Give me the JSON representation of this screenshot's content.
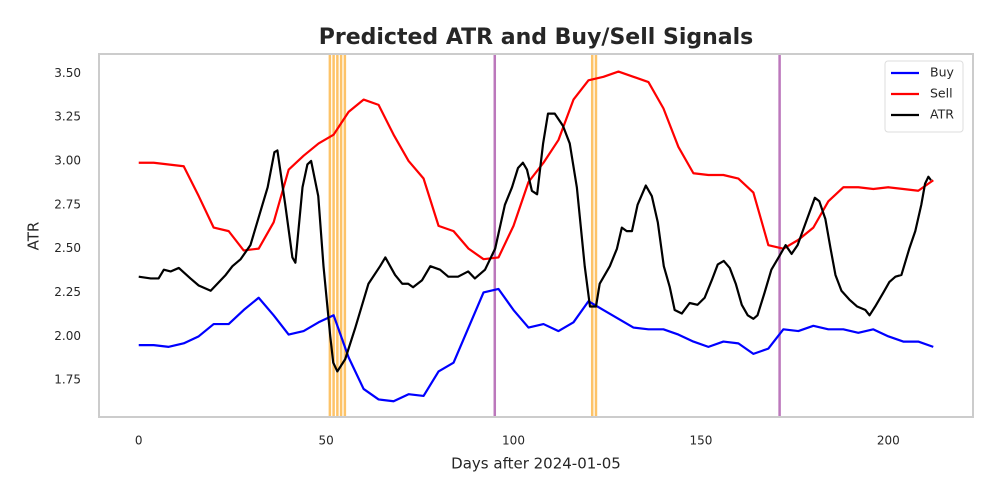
{
  "chart_data": {
    "type": "line",
    "title": "Predicted ATR and Buy/Sell Signals",
    "xlabel": "Days after 2024-01-05",
    "ylabel": "ATR",
    "x": [
      0,
      4,
      8,
      12,
      16,
      20,
      24,
      28,
      32,
      36,
      40,
      44,
      48,
      52,
      56,
      60,
      64,
      68,
      72,
      76,
      80,
      84,
      88,
      92,
      96,
      100,
      104,
      108,
      112,
      116,
      120,
      124,
      128,
      132,
      136,
      140,
      144,
      148,
      152,
      156,
      160,
      164,
      168,
      172,
      176,
      180,
      184,
      188,
      192,
      196,
      200,
      204,
      208,
      212
    ],
    "series": [
      {
        "name": "Buy",
        "color": "#0000ff",
        "values": [
          1.95,
          1.95,
          1.94,
          1.96,
          2.0,
          2.07,
          2.07,
          2.15,
          2.22,
          2.12,
          2.01,
          2.03,
          2.08,
          2.12,
          1.88,
          1.7,
          1.64,
          1.63,
          1.67,
          1.66,
          1.8,
          1.85,
          2.05,
          2.25,
          2.27,
          2.15,
          2.05,
          2.07,
          2.03,
          2.08,
          2.2,
          2.15,
          2.1,
          2.05,
          2.04,
          2.04,
          2.01,
          1.97,
          1.94,
          1.97,
          1.96,
          1.9,
          1.93,
          2.04,
          2.03,
          2.06,
          2.04,
          2.04,
          2.02,
          2.04,
          2.0,
          1.97,
          1.97,
          1.94
        ]
      },
      {
        "name": "Sell",
        "color": "#ff0000",
        "values": [
          2.99,
          2.99,
          2.98,
          2.97,
          2.8,
          2.62,
          2.6,
          2.49,
          2.5,
          2.65,
          2.95,
          3.03,
          3.1,
          3.15,
          3.28,
          3.35,
          3.32,
          3.15,
          3.0,
          2.9,
          2.63,
          2.6,
          2.5,
          2.44,
          2.45,
          2.63,
          2.88,
          2.99,
          3.12,
          3.35,
          3.46,
          3.48,
          3.51,
          3.48,
          3.45,
          3.3,
          3.08,
          2.93,
          2.92,
          2.92,
          2.9,
          2.82,
          2.52,
          2.5,
          2.55,
          2.62,
          2.77,
          2.85,
          2.85,
          2.84,
          2.85,
          2.84,
          2.83,
          2.89
        ]
      },
      {
        "name": "ATR",
        "color": "#000000",
        "x": [
          0,
          3.2,
          5.3,
          6.7,
          8.5,
          10.7,
          13.8,
          16,
          19.2,
          23.2,
          25,
          27.2,
          29.8,
          33,
          34.4,
          36.2,
          37,
          39.1,
          41,
          41.8,
          43.7,
          45,
          46,
          47.9,
          49.3,
          51.1,
          51.9,
          53,
          55.1,
          57.8,
          61.3,
          64.4,
          65.8,
          68.4,
          70.3,
          71.9,
          73.2,
          75.6,
          77.8,
          80.4,
          82.6,
          85.2,
          87.9,
          89.7,
          92.4,
          95.1,
          97.7,
          99.6,
          101.2,
          102.5,
          103.6,
          104.9,
          106.3,
          107.9,
          109.2,
          111,
          113.2,
          115,
          116.9,
          119,
          120.4,
          122,
          123,
          125.7,
          127.6,
          128.9,
          130.2,
          131.6,
          133.1,
          135.3,
          136.9,
          138.5,
          140.1,
          141.7,
          143,
          144.9,
          147,
          149.1,
          151,
          152.9,
          154.5,
          156.1,
          157.7,
          159.3,
          160.9,
          162.5,
          164,
          165.1,
          167,
          168.8,
          171,
          172.6,
          174.2,
          175.8,
          178,
          180.4,
          181.6,
          183.2,
          184.6,
          185.9,
          187.5,
          189.6,
          191.7,
          193.9,
          195,
          196.5,
          198.7,
          200.3,
          201.9,
          203.5,
          205.6,
          207.2,
          208.8,
          209.8,
          210.7,
          211.4
        ],
        "values": [
          2.34,
          2.33,
          2.33,
          2.38,
          2.37,
          2.39,
          2.33,
          2.29,
          2.26,
          2.35,
          2.4,
          2.44,
          2.52,
          2.75,
          2.85,
          3.05,
          3.06,
          2.75,
          2.45,
          2.42,
          2.85,
          2.98,
          3.0,
          2.8,
          2.4,
          2.0,
          1.85,
          1.8,
          1.87,
          2.05,
          2.3,
          2.4,
          2.45,
          2.35,
          2.3,
          2.3,
          2.28,
          2.32,
          2.4,
          2.38,
          2.34,
          2.34,
          2.37,
          2.33,
          2.38,
          2.5,
          2.75,
          2.85,
          2.96,
          2.99,
          2.95,
          2.83,
          2.81,
          3.1,
          3.27,
          3.27,
          3.2,
          3.1,
          2.85,
          2.4,
          2.17,
          2.17,
          2.3,
          2.4,
          2.5,
          2.62,
          2.6,
          2.6,
          2.75,
          2.86,
          2.8,
          2.65,
          2.4,
          2.28,
          2.15,
          2.13,
          2.19,
          2.18,
          2.22,
          2.32,
          2.41,
          2.43,
          2.39,
          2.3,
          2.18,
          2.12,
          2.1,
          2.12,
          2.25,
          2.38,
          2.46,
          2.52,
          2.47,
          2.52,
          2.65,
          2.79,
          2.77,
          2.67,
          2.5,
          2.35,
          2.26,
          2.21,
          2.17,
          2.15,
          2.12,
          2.17,
          2.25,
          2.31,
          2.34,
          2.35,
          2.5,
          2.6,
          2.75,
          2.87,
          2.91,
          2.89
        ]
      }
    ],
    "vlines": [
      {
        "color": "#fdb94d",
        "x": [
          51,
          52,
          53,
          54,
          55,
          121,
          122
        ]
      },
      {
        "color": "#b060b0",
        "x": [
          95,
          171
        ]
      }
    ],
    "xlim": [
      -10.6,
      222.6
    ],
    "ylim": [
      1.54,
      3.61
    ],
    "xticks": [
      0,
      50,
      100,
      150,
      200
    ],
    "yticks": [
      1.75,
      {
        "value": 2.0,
        "label": "2.00"
      },
      2.25,
      {
        "value": 2.5,
        "label": "2.50"
      },
      2.75,
      {
        "value": 3.0,
        "label": "3.00"
      },
      3.25,
      {
        "value": 3.5,
        "label": "3.50"
      }
    ],
    "grid": false,
    "legend": "upper right"
  }
}
